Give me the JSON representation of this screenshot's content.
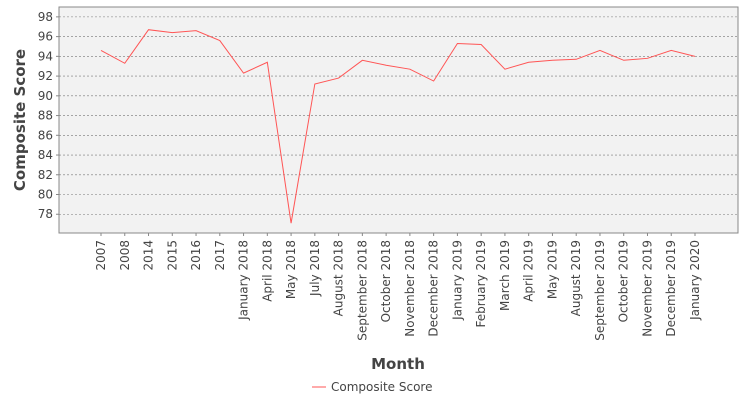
{
  "chart_data": {
    "type": "line",
    "x_label": "Month",
    "y_label": "Composite Score",
    "categories": [
      "2007",
      "2008",
      "2014",
      "2015",
      "2016",
      "2017",
      "January 2018",
      "April 2018",
      "May 2018",
      "July 2018",
      "August 2018",
      "September 2018",
      "October 2018",
      "November 2018",
      "December 2018",
      "January 2019",
      "February 2019",
      "March 2019",
      "April 2019",
      "May 2019",
      "August 2019",
      "September 2019",
      "October 2019",
      "November 2019",
      "December 2019",
      "January 2020"
    ],
    "series": [
      {
        "name": "Composite Score",
        "color": "#ff5555",
        "values": [
          94.6,
          93.3,
          96.7,
          96.4,
          96.6,
          95.6,
          92.3,
          93.4,
          77.1,
          91.2,
          91.8,
          93.6,
          93.1,
          92.7,
          91.5,
          95.3,
          95.2,
          92.7,
          93.4,
          93.6,
          93.7,
          94.6,
          93.6,
          93.8,
          94.6,
          94.0
        ]
      }
    ],
    "ylim": [
      76.1,
      99.0
    ],
    "yticks": [
      78,
      80,
      82,
      84,
      86,
      88,
      90,
      92,
      94,
      96,
      98
    ],
    "grid": true,
    "legend": "bottom"
  }
}
